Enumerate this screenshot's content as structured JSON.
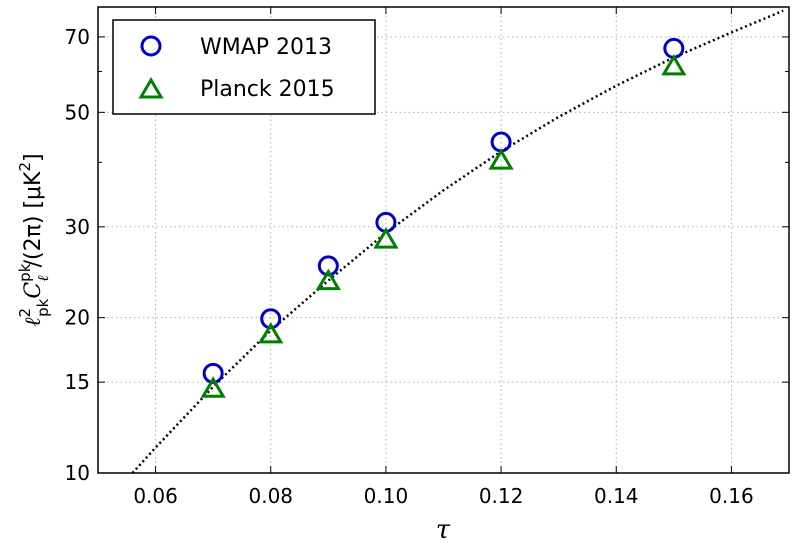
{
  "chart_data": {
    "type": "scatter",
    "title": "",
    "xlabel": "τ",
    "ylabel": "ℓ²pk Cℓpk /(2π) [μK²]",
    "ylabel_parts": {
      "ell": "ℓ",
      "sup2": "2",
      "sub_pk": "pk",
      "C": "C",
      "sup_pk": "pk",
      "sub_ell": "ℓ",
      "rest": "/(2π) [μK",
      "sup_k2": "2",
      "close": "]"
    },
    "xlim": [
      0.05,
      0.17
    ],
    "ylim": [
      10,
      80
    ],
    "y_scale": "log",
    "grid": true,
    "legend_position": "top-left",
    "x_ticks": [
      0.06,
      0.08,
      0.1,
      0.12,
      0.14,
      0.16
    ],
    "x_tick_labels": [
      "0.06",
      "0.08",
      "0.10",
      "0.12",
      "0.14",
      "0.16"
    ],
    "y_ticks": [
      10,
      15,
      20,
      30,
      50,
      70
    ],
    "y_tick_labels": [
      "10",
      "15",
      "20",
      "30",
      "50",
      "70"
    ],
    "series": [
      {
        "name": "WMAP 2013",
        "marker": "circle-open",
        "color": "#0000cc",
        "x": [
          0.07,
          0.08,
          0.09,
          0.1,
          0.12,
          0.15
        ],
        "y": [
          15.6,
          19.9,
          25.2,
          30.6,
          43.8,
          66.5
        ]
      },
      {
        "name": "Planck 2015",
        "marker": "triangle-open",
        "color": "#008000",
        "x": [
          0.07,
          0.08,
          0.09,
          0.1,
          0.12,
          0.15
        ],
        "y": [
          14.6,
          18.6,
          23.6,
          28.4,
          40.4,
          61.5
        ]
      }
    ],
    "fit_curve": {
      "style": "dotted",
      "color": "#000000",
      "x": [
        0.056,
        0.06,
        0.07,
        0.08,
        0.09,
        0.1,
        0.11,
        0.12,
        0.13,
        0.14,
        0.15,
        0.16,
        0.169
      ],
      "y": [
        10.0,
        11.2,
        14.7,
        18.9,
        23.6,
        29.2,
        35.3,
        42.0,
        49.0,
        56.3,
        63.9,
        71.4,
        78.7
      ]
    }
  }
}
